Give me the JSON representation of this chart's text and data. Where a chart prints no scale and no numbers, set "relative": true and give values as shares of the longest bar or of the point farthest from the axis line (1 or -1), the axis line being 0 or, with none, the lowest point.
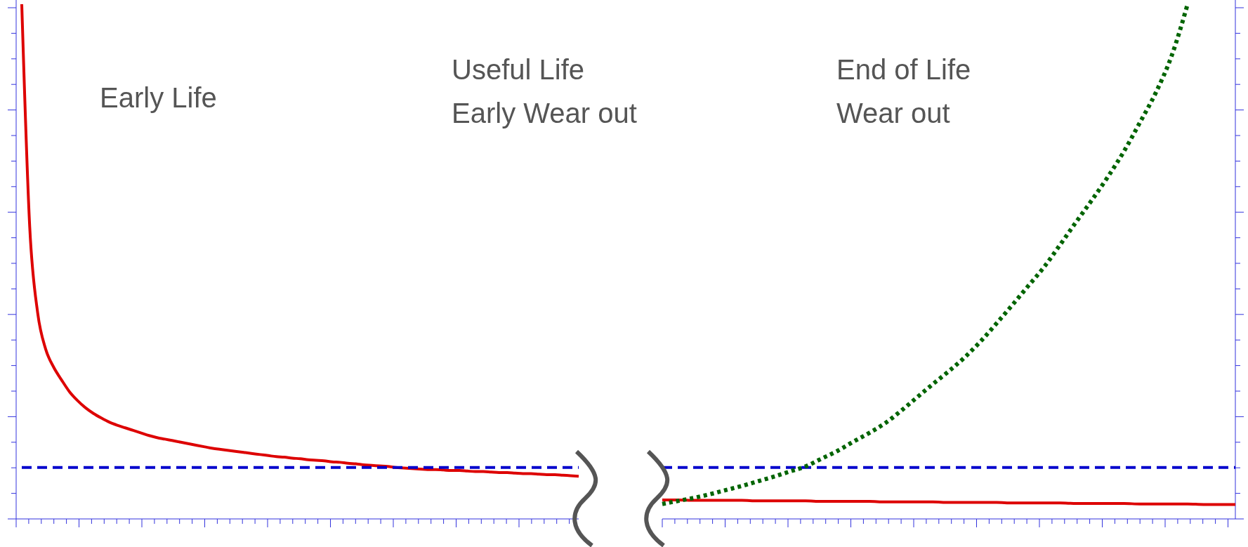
{
  "chart_data": [
    {
      "type": "line",
      "relative": true,
      "annotations": [
        "Early Life",
        "Useful Life\nEarly Wear out"
      ],
      "categories": [
        null,
        null,
        null,
        null,
        null,
        null,
        null,
        null,
        null,
        null,
        null,
        null,
        null,
        null,
        null,
        null,
        null,
        null,
        null,
        null,
        null,
        null,
        null,
        null,
        null,
        null,
        null,
        null,
        null,
        null,
        null,
        null,
        null,
        null,
        null,
        null,
        null,
        null,
        null,
        null,
        null,
        null,
        null,
        null,
        null,
        null,
        null,
        null,
        null,
        null,
        null,
        null,
        null,
        null,
        null,
        null,
        null,
        null,
        null,
        null,
        null,
        null,
        null,
        null,
        null,
        null,
        null,
        null,
        null,
        null,
        null
      ],
      "series": [
        {
          "color": "#dd0000",
          "line_style": "solid",
          "values": [
            1.0,
            0.567,
            0.4,
            0.33,
            0.295,
            0.27,
            0.247,
            0.23,
            0.216,
            0.205,
            0.196,
            0.188,
            0.182,
            0.177,
            0.172,
            0.167,
            0.162,
            0.158,
            0.155,
            0.152,
            0.149,
            0.146,
            0.143,
            0.14,
            0.137,
            0.135,
            0.133,
            0.131,
            0.129,
            0.127,
            0.125,
            0.123,
            0.121,
            0.12,
            0.118,
            0.117,
            0.115,
            0.114,
            0.113,
            0.111,
            0.11,
            0.108,
            0.107,
            0.105,
            0.104,
            0.103,
            0.102,
            0.1,
            0.099,
            0.098,
            0.097,
            0.096,
            0.096,
            0.095,
            0.094,
            0.094,
            0.093,
            0.092,
            0.092,
            0.091,
            0.09,
            0.09,
            0.089,
            0.088,
            0.088,
            0.087,
            0.086,
            0.086,
            0.085,
            0.084,
            0.083
          ]
        },
        {
          "color": "#0000cc",
          "line_style": "dashed",
          "values": [
            0.1,
            0.1,
            0.1,
            0.1,
            0.1,
            0.1,
            0.1,
            0.1,
            0.1,
            0.1,
            0.1,
            0.1,
            0.1,
            0.1,
            0.1,
            0.1,
            0.1,
            0.1,
            0.1,
            0.1,
            0.1,
            0.1,
            0.1,
            0.1,
            0.1,
            0.1,
            0.1,
            0.1,
            0.1,
            0.1,
            0.1,
            0.1,
            0.1,
            0.1,
            0.1,
            0.1,
            0.1,
            0.1,
            0.1,
            0.1,
            0.1,
            0.1,
            0.1,
            0.1,
            0.1,
            0.1,
            0.1,
            0.1,
            0.1,
            0.1,
            0.1,
            0.1,
            0.1,
            0.1,
            0.1,
            0.1,
            0.1,
            0.1,
            0.1,
            0.1,
            0.1,
            0.1,
            0.1,
            0.1,
            0.1,
            0.1,
            0.1,
            0.1,
            0.1,
            0.1,
            0.1
          ]
        }
      ]
    },
    {
      "type": "line",
      "relative": true,
      "annotations": [
        "End of Life\nWear out"
      ],
      "categories": [
        null,
        null,
        null,
        null,
        null,
        null,
        null,
        null,
        null,
        null,
        null,
        null,
        null,
        null,
        null,
        null,
        null,
        null,
        null,
        null,
        null,
        null,
        null,
        null,
        null,
        null,
        null,
        null,
        null,
        null,
        null,
        null,
        null,
        null,
        null,
        null,
        null
      ],
      "series": [
        {
          "color": "#dd0000",
          "line_style": "solid",
          "values": [
            0.037,
            0.037,
            0.036,
            0.036,
            0.036,
            0.036,
            0.035,
            0.035,
            0.035,
            0.035,
            0.034,
            0.034,
            0.034,
            0.034,
            0.033,
            0.033,
            0.033,
            0.033,
            0.032,
            0.032,
            0.032,
            0.032,
            0.031,
            0.031,
            0.031,
            0.031,
            0.03,
            0.03,
            0.03,
            0.03,
            0.029,
            0.029,
            0.029,
            0.029,
            0.028,
            0.028,
            0.028
          ]
        },
        {
          "color": "#0000cc",
          "line_style": "dashed",
          "values": [
            0.1,
            0.1,
            0.1,
            0.1,
            0.1,
            0.1,
            0.1,
            0.1,
            0.1,
            0.1,
            0.1,
            0.1,
            0.1,
            0.1,
            0.1,
            0.1,
            0.1,
            0.1,
            0.1,
            0.1,
            0.1,
            0.1,
            0.1,
            0.1,
            0.1,
            0.1,
            0.1,
            0.1,
            0.1,
            0.1,
            0.1,
            0.1,
            0.1,
            0.1,
            0.1,
            0.1,
            0.1
          ]
        },
        {
          "color": "#006400",
          "line_style": "dotted",
          "values": [
            0.029,
            0.035,
            0.041,
            0.048,
            0.056,
            0.064,
            0.073,
            0.082,
            0.092,
            0.102,
            0.117,
            0.132,
            0.15,
            0.167,
            0.186,
            0.21,
            0.236,
            0.262,
            0.287,
            0.314,
            0.345,
            0.38,
            0.416,
            0.453,
            0.49,
            0.533,
            0.577,
            0.62,
            0.665,
            0.714,
            0.77,
            0.828,
            0.9,
            1.0,
            null,
            null,
            null
          ]
        }
      ]
    }
  ]
}
